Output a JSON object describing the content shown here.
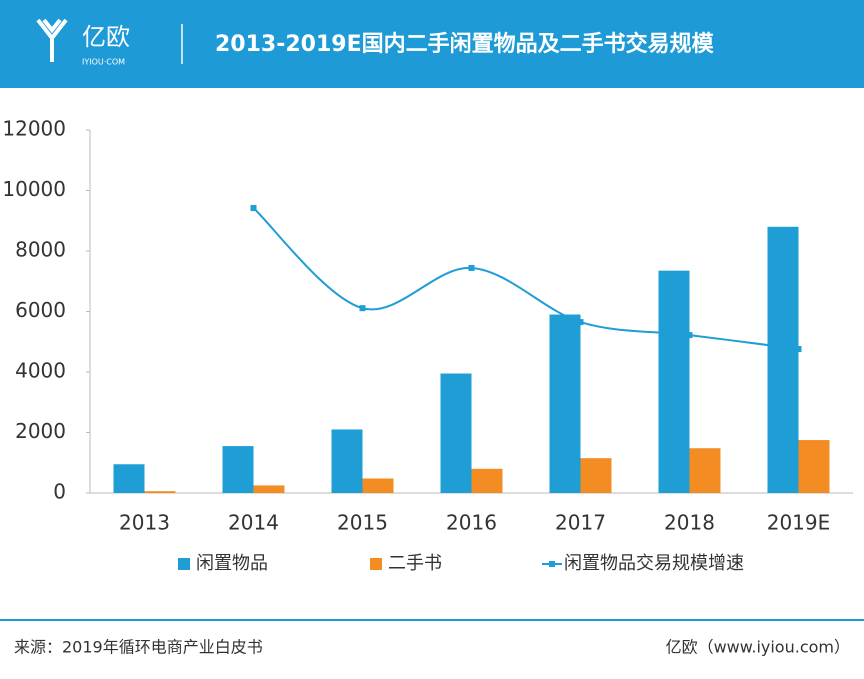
{
  "header": {
    "logo": "亿欧",
    "logo_sub": "IYIOU·COM"
  },
  "chart_data": {
    "type": "bar",
    "title": "2013-2019E国内二手闲置物品及二手书交易规模",
    "categories": [
      "2013",
      "2014",
      "2015",
      "2016",
      "2017",
      "2018",
      "2019E"
    ],
    "series": [
      {
        "name": "闲置物品",
        "color": "#1f9dd5",
        "values": [
          950,
          1550,
          2100,
          3950,
          5900,
          7350,
          8800
        ]
      },
      {
        "name": "二手书",
        "color": "#f48c24",
        "values": [
          60,
          250,
          480,
          800,
          1150,
          1480,
          1750
        ]
      },
      {
        "name": "闲置物品交易规模增速",
        "type": "line",
        "color": "#1f9dd5",
        "values": [
          null,
          9420,
          6110,
          7440,
          5650,
          5220,
          4760
        ]
      }
    ],
    "ylim": [
      0,
      12000
    ],
    "yticks": [
      0,
      2000,
      4000,
      6000,
      8000,
      10000,
      12000
    ],
    "grid": false
  },
  "footer": {
    "source": "来源：2019年循环电商产业白皮书",
    "credit": "亿欧（www.iyiou.com）"
  }
}
